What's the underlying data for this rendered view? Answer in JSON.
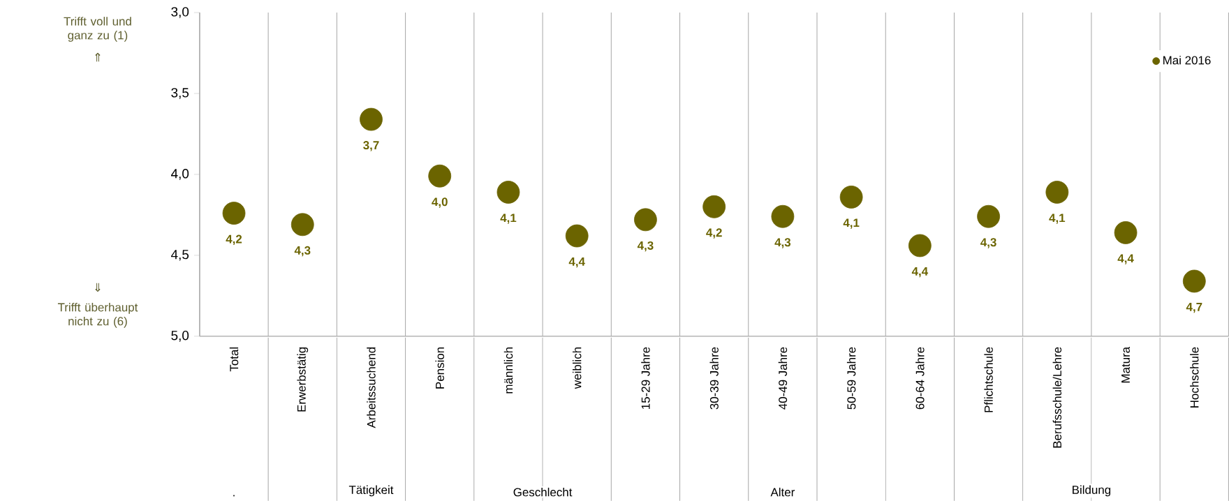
{
  "chart_data": {
    "type": "scatter",
    "categories": [
      "Total",
      "Erwerbstätig",
      "Arbeitssuchend",
      "Pension",
      "männlich",
      "weiblich",
      "15-29 Jahre",
      "30-39 Jahre",
      "40-49 Jahre",
      "50-59 Jahre",
      "60-64 Jahre",
      "Pflichtschule",
      "Berufsschule/Lehre",
      "Matura",
      "Hochschule"
    ],
    "series": [
      {
        "name": "Mai 2016",
        "color": "#6b6400",
        "values": [
          4.24,
          4.31,
          3.66,
          4.01,
          4.11,
          4.38,
          4.28,
          4.2,
          4.26,
          4.14,
          4.44,
          4.26,
          4.11,
          4.36,
          4.66
        ],
        "value_labels": [
          "4,2",
          "4,3",
          "3,7",
          "4,0",
          "4,1",
          "4,4",
          "4,3",
          "4,2",
          "4,3",
          "4,1",
          "4,4",
          "4,3",
          "4,1",
          "4,4",
          "4,7"
        ]
      }
    ],
    "ylim": [
      5.0,
      3.0
    ],
    "yticks": [
      {
        "value": 3.0,
        "label": "3,0"
      },
      {
        "value": 3.5,
        "label": "3,5"
      },
      {
        "value": 4.0,
        "label": "4,0"
      },
      {
        "value": 4.5,
        "label": "4,5"
      },
      {
        "value": 5.0,
        "label": "5,0"
      }
    ],
    "grid": "x",
    "legend": "top right",
    "marker": "circle",
    "annotations": [
      "Trifft voll und ganz zu (1)",
      "⇑",
      "⇓",
      "Trifft überhaupt nicht zu (6)",
      ".",
      "Tätigkeit",
      "Geschlecht",
      "Alter",
      "Bildung"
    ]
  }
}
